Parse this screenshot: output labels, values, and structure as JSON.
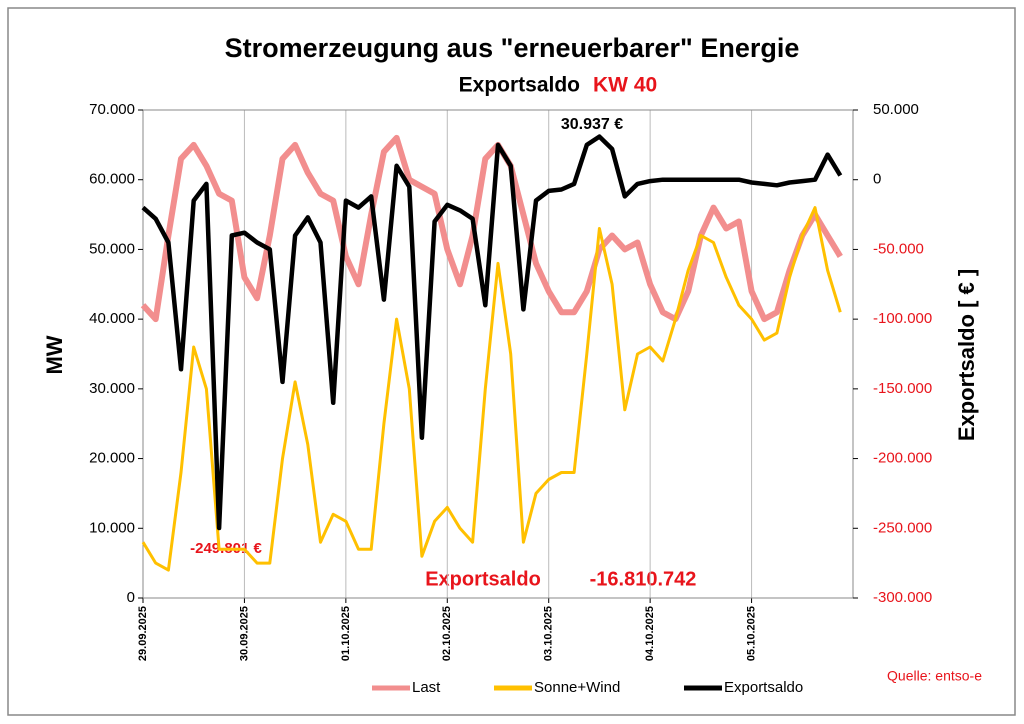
{
  "chart_data": {
    "type": "line",
    "title": "Stromerzeugung aus \"erneuerbarer\" Energie",
    "subtitle": "Exportsaldo",
    "subtitle_tag": "KW 40",
    "y_label": "MW",
    "y2_label": "Exportsaldo [ € ]",
    "annotations": [
      "30.937 €",
      "-249.801 €",
      "Exportsaldo",
      "-16.810.742"
    ],
    "source": "Quelle: entso-e",
    "grid": true,
    "categories": [
      "29.09.2025",
      null,
      null,
      null,
      null,
      null,
      null,
      null,
      "30.09.2025",
      null,
      null,
      null,
      null,
      null,
      null,
      null,
      "01.10.2025",
      null,
      null,
      null,
      null,
      null,
      null,
      null,
      "02.10.2025",
      null,
      null,
      null,
      null,
      null,
      null,
      null,
      "03.10.2025",
      null,
      null,
      null,
      null,
      null,
      null,
      null,
      "04.10.2025",
      null,
      null,
      null,
      null,
      null,
      null,
      null,
      "05.10.2025",
      null,
      null,
      null,
      null,
      null,
      null,
      null
    ],
    "ylim": [
      0,
      70000
    ],
    "yticks": [
      0,
      {
        "value": 10000,
        "label": "10.000"
      },
      {
        "value": 20000,
        "label": "20.000"
      },
      {
        "value": 30000,
        "label": "30.000"
      },
      {
        "value": 40000,
        "label": "40.000"
      },
      {
        "value": 50000,
        "label": "50.000"
      },
      {
        "value": 60000,
        "label": "60.000"
      },
      {
        "value": 70000,
        "label": "70.000"
      }
    ],
    "y2lim": [
      -300000,
      50000
    ],
    "y2ticks": [
      {
        "value": -300000,
        "label": "-300.000"
      },
      {
        "value": -250000,
        "label": "-250.000"
      },
      {
        "value": -200000,
        "label": "-200.000"
      },
      {
        "value": -150000,
        "label": "-150.000"
      },
      {
        "value": -100000,
        "label": "-100.000"
      },
      {
        "value": -50000,
        "label": "-50.000"
      },
      0,
      {
        "value": 50000,
        "label": "50.000"
      }
    ],
    "series": [
      {
        "name": "Last",
        "color": "#f28e8e",
        "values": [
          42000,
          40000,
          52000,
          63000,
          65000,
          62000,
          58000,
          57000,
          46000,
          43000,
          52000,
          63000,
          65000,
          61000,
          58000,
          57000,
          49000,
          45000,
          55000,
          64000,
          66000,
          60000,
          59000,
          58000,
          50000,
          45000,
          52000,
          63000,
          65000,
          62000,
          55000,
          48000,
          44000,
          41000,
          41000,
          44000,
          50000,
          52000,
          50000,
          51000,
          45000,
          41000,
          40000,
          44000,
          52000,
          56000,
          53000,
          54000,
          44000,
          40000,
          41000,
          47000,
          52000,
          55000,
          52000,
          49000
        ]
      },
      {
        "name": "Sonne+Wind",
        "color": "#ffc000",
        "values": [
          8000,
          5000,
          4000,
          18000,
          36000,
          30000,
          7000,
          7000,
          7000,
          5000,
          5000,
          20000,
          31000,
          22000,
          8000,
          12000,
          11000,
          7000,
          7000,
          25000,
          40000,
          30000,
          6000,
          11000,
          13000,
          10000,
          8000,
          30000,
          48000,
          35000,
          8000,
          15000,
          17000,
          18000,
          18000,
          35000,
          53000,
          45000,
          27000,
          35000,
          36000,
          34000,
          40000,
          47000,
          52000,
          51000,
          46000,
          42000,
          40000,
          37000,
          38000,
          46000,
          52000,
          56000,
          47000,
          41000
        ]
      },
      {
        "name": "Exportsaldo",
        "color": "#000000",
        "axis": "y2",
        "values": [
          -20000,
          -28000,
          -45000,
          -136000,
          -15000,
          -3000,
          -249801,
          -40000,
          -38000,
          -45000,
          -50000,
          -145000,
          -40000,
          -27000,
          -45000,
          -160000,
          -15000,
          -20000,
          -12000,
          -86000,
          10000,
          -5000,
          -185000,
          -30000,
          -18000,
          -22000,
          -28000,
          -90000,
          25000,
          10000,
          -93000,
          -15000,
          -8000,
          -7000,
          -3000,
          25000,
          30937,
          22000,
          -12000,
          -3000,
          -1000,
          0,
          0,
          0,
          0,
          0,
          0,
          0,
          -2000,
          -3000,
          -4000,
          -2000,
          -1000,
          0,
          18000,
          3000
        ]
      }
    ]
  }
}
